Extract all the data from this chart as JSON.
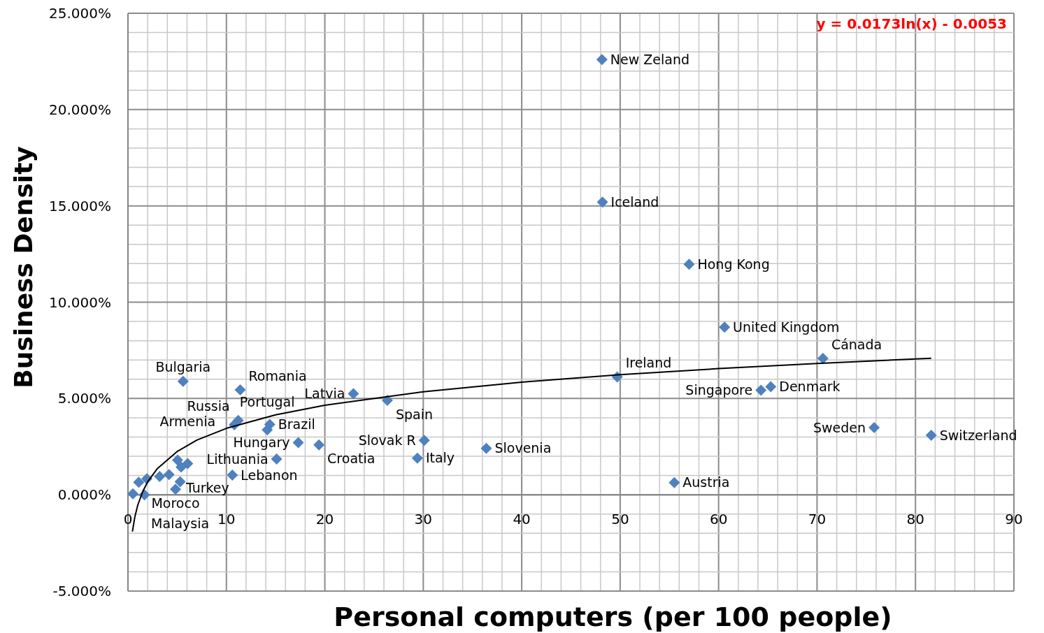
{
  "chart_data": {
    "type": "scatter",
    "xlabel": "Personal computers (per 100 people)",
    "ylabel": "Business Density",
    "marker": "diamond",
    "grid": true,
    "xlim": [
      0,
      90
    ],
    "ylim": [
      -5,
      25
    ],
    "xticks": [
      0,
      {
        "value": 2,
        "label": null
      },
      {
        "value": 4,
        "label": null
      },
      {
        "value": 6,
        "label": null
      },
      {
        "value": 8,
        "label": null
      },
      10,
      {
        "value": 12,
        "label": null
      },
      {
        "value": 14,
        "label": null
      },
      {
        "value": 16,
        "label": null
      },
      {
        "value": 18,
        "label": null
      },
      20,
      {
        "value": 22,
        "label": null
      },
      {
        "value": 24,
        "label": null
      },
      {
        "value": 26,
        "label": null
      },
      {
        "value": 28,
        "label": null
      },
      30,
      {
        "value": 32,
        "label": null
      },
      {
        "value": 34,
        "label": null
      },
      {
        "value": 36,
        "label": null
      },
      {
        "value": 38,
        "label": null
      },
      40,
      {
        "value": 42,
        "label": null
      },
      {
        "value": 44,
        "label": null
      },
      {
        "value": 46,
        "label": null
      },
      {
        "value": 48,
        "label": null
      },
      50,
      {
        "value": 52,
        "label": null
      },
      {
        "value": 54,
        "label": null
      },
      {
        "value": 56,
        "label": null
      },
      {
        "value": 58,
        "label": null
      },
      60,
      {
        "value": 62,
        "label": null
      },
      {
        "value": 64,
        "label": null
      },
      {
        "value": 66,
        "label": null
      },
      {
        "value": 68,
        "label": null
      },
      70,
      {
        "value": 72,
        "label": null
      },
      {
        "value": 74,
        "label": null
      },
      {
        "value": 76,
        "label": null
      },
      {
        "value": 78,
        "label": null
      },
      80,
      {
        "value": 82,
        "label": null
      },
      {
        "value": 84,
        "label": null
      },
      {
        "value": 86,
        "label": null
      },
      {
        "value": 88,
        "label": null
      },
      90
    ],
    "yticks": [
      {
        "value": -5,
        "label": "-5.000%"
      },
      {
        "value": -4,
        "label": null
      },
      {
        "value": -3,
        "label": null
      },
      {
        "value": -2,
        "label": null
      },
      {
        "value": -1,
        "label": null
      },
      {
        "value": 0,
        "label": "0.000%"
      },
      {
        "value": 1,
        "label": null
      },
      {
        "value": 2,
        "label": null
      },
      {
        "value": 3,
        "label": null
      },
      {
        "value": 4,
        "label": null
      },
      {
        "value": 5,
        "label": "5.000%"
      },
      {
        "value": 6,
        "label": null
      },
      {
        "value": 7,
        "label": null
      },
      {
        "value": 8,
        "label": null
      },
      {
        "value": 9,
        "label": null
      },
      {
        "value": 10,
        "label": "10.000%"
      },
      {
        "value": 11,
        "label": null
      },
      {
        "value": 12,
        "label": null
      },
      {
        "value": 13,
        "label": null
      },
      {
        "value": 14,
        "label": null
      },
      {
        "value": 15,
        "label": "15.000%"
      },
      {
        "value": 16,
        "label": null
      },
      {
        "value": 17,
        "label": null
      },
      {
        "value": 18,
        "label": null
      },
      {
        "value": 19,
        "label": null
      },
      {
        "value": 20,
        "label": "20.000%"
      },
      {
        "value": 21,
        "label": null
      },
      {
        "value": 22,
        "label": null
      },
      {
        "value": 23,
        "label": null
      },
      {
        "value": 24,
        "label": null
      },
      {
        "value": 25,
        "label": "25.000%"
      }
    ],
    "series": [
      {
        "color": "#4f81bd",
        "x": [
          48.15,
          48.2,
          57.0,
          60.6,
          70.6,
          65.3,
          64.3,
          75.8,
          81.6,
          49.7,
          26.35,
          30.1,
          29.4,
          36.4,
          55.5,
          22.9,
          11.4,
          5.6,
          11.2,
          10.8,
          14.4,
          14.15,
          17.3,
          19.4,
          15.1,
          10.6,
          5.04,
          6.06,
          5.4,
          4.17,
          3.22,
          5.3,
          4.83,
          1.92,
          1.09,
          1.68,
          0.5
        ],
        "values": [
          22.6,
          15.2,
          11.97,
          8.7,
          7.08,
          5.61,
          5.43,
          3.49,
          3.09,
          6.12,
          4.9,
          2.83,
          1.9,
          2.41,
          0.63,
          5.25,
          5.45,
          5.89,
          3.86,
          3.63,
          3.65,
          3.37,
          2.71,
          2.59,
          1.86,
          1.02,
          1.8,
          1.62,
          1.44,
          1.05,
          0.95,
          0.68,
          0.29,
          0.83,
          0.65,
          0,
          0.05
        ]
      },
      {
        "type": "line",
        "color": "#000000",
        "marker": "none",
        "x": [
          0.45,
          0.7,
          1,
          1.5,
          2,
          3,
          5,
          7,
          10,
          15,
          20,
          30,
          40,
          50,
          60,
          70,
          81.6
        ],
        "values": [
          -1.91,
          -1.15,
          -0.53,
          0.17,
          0.67,
          1.37,
          2.25,
          2.84,
          3.45,
          4.15,
          4.65,
          5.35,
          5.85,
          6.24,
          6.55,
          6.82,
          7.09
        ]
      }
    ],
    "annotations": [
      "y = 0.0173ln(x) - 0.0053",
      {
        "text": "New Zeland",
        "x": 48.15,
        "y": 22.6
      },
      {
        "text": "Iceland",
        "x": 48.2,
        "y": 15.2
      },
      {
        "text": "Hong Kong",
        "x": 57.0,
        "y": 11.97
      },
      {
        "text": "United Kingdom",
        "x": 60.6,
        "y": 8.7
      },
      {
        "text": "Cánada",
        "x": 70.6,
        "y": 7.08
      },
      {
        "text": "Ireland",
        "x": 49.7,
        "y": 6.12
      },
      {
        "text": "Denmark",
        "x": 65.3,
        "y": 5.61
      },
      {
        "text": "Singapore",
        "x": 64.3,
        "y": 5.43
      },
      {
        "text": "Sweden",
        "x": 75.8,
        "y": 3.49
      },
      {
        "text": "Switzerland",
        "x": 81.6,
        "y": 3.09
      },
      {
        "text": "Austria",
        "x": 55.5,
        "y": 0.63
      },
      {
        "text": "Slovak R",
        "x": 30.1,
        "y": 2.83
      },
      {
        "text": "Slovenia",
        "x": 36.4,
        "y": 2.41
      },
      {
        "text": "Italy",
        "x": 29.4,
        "y": 1.9
      },
      {
        "text": "Spain",
        "x": 26.35,
        "y": 4.9
      },
      {
        "text": "Latvia",
        "x": 22.9,
        "y": 5.25
      },
      {
        "text": "Romania",
        "x": 11.4,
        "y": 5.45
      },
      {
        "text": "Bulgaria",
        "x": 5.6,
        "y": 5.89
      },
      {
        "text": "Russia",
        "x": 11.2,
        "y": 3.86
      },
      {
        "text": "Brazil",
        "x": 14.4,
        "y": 3.65
      },
      {
        "text": "Hungary",
        "x": 17.3,
        "y": 2.71
      },
      {
        "text": "Portugal",
        "x": 14.15,
        "y": 3.37
      },
      {
        "text": "Croatia",
        "x": 19.4,
        "y": 2.59
      },
      {
        "text": "Lithuania",
        "x": 15.1,
        "y": 1.86
      },
      {
        "text": "Turkey",
        "x": 5.04,
        "y": 1.8
      },
      {
        "text": "Armenia",
        "x": 6.06,
        "y": 1.62
      },
      {
        "text": "Lebanon",
        "x": 10.6,
        "y": 1.02
      },
      {
        "text": "Moroco",
        "x": 4.83,
        "y": 0.29
      },
      {
        "text": "Malaysia",
        "x": 5.3,
        "y": 0.68
      }
    ]
  }
}
